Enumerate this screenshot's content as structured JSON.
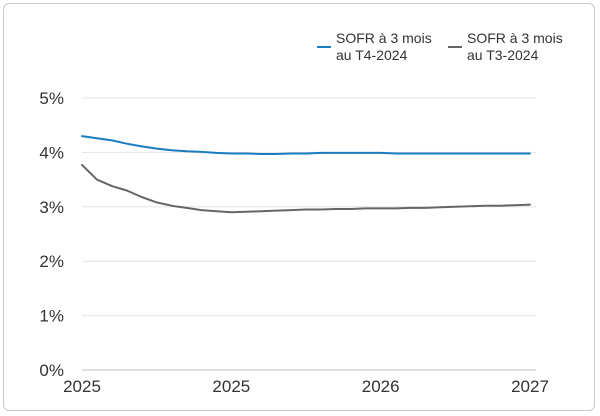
{
  "chart_data": {
    "type": "line",
    "title": "",
    "xlabel": "",
    "ylabel": "",
    "ylim": [
      0,
      5
    ],
    "y_ticks": [
      {
        "value": 0,
        "label": "0%"
      },
      {
        "value": 1,
        "label": "1%"
      },
      {
        "value": 2,
        "label": "2%"
      },
      {
        "value": 3,
        "label": "3%"
      },
      {
        "value": 4,
        "label": "4%"
      },
      {
        "value": 5,
        "label": "5%"
      }
    ],
    "xlim": [
      0,
      30
    ],
    "x_ticks": [
      {
        "value": 0,
        "label": "2025"
      },
      {
        "value": 10,
        "label": "2025"
      },
      {
        "value": 20,
        "label": "2026"
      },
      {
        "value": 30,
        "label": "2027"
      }
    ],
    "grid": true,
    "legend_position": "top-right",
    "x": [
      0,
      1,
      2,
      3,
      4,
      5,
      6,
      7,
      8,
      9,
      10,
      11,
      12,
      13,
      14,
      15,
      16,
      17,
      18,
      19,
      20,
      21,
      22,
      23,
      24,
      25,
      26,
      27,
      28,
      29,
      30
    ],
    "series": [
      {
        "name_line1": "SOFR à 3 mois",
        "name_line2": "au T4-2024",
        "color": "#1a7cc1",
        "values": [
          4.3,
          4.26,
          4.22,
          4.16,
          4.11,
          4.07,
          4.04,
          4.02,
          4.01,
          3.99,
          3.98,
          3.98,
          3.97,
          3.97,
          3.98,
          3.98,
          3.99,
          3.99,
          3.99,
          3.99,
          3.99,
          3.98,
          3.98,
          3.98,
          3.98,
          3.98,
          3.98,
          3.98,
          3.98,
          3.98,
          3.98
        ]
      },
      {
        "name_line1": "SOFR à 3 mois",
        "name_line2": "au T3-2024",
        "color": "#666666",
        "values": [
          3.77,
          3.5,
          3.38,
          3.3,
          3.18,
          3.08,
          3.02,
          2.98,
          2.94,
          2.92,
          2.9,
          2.91,
          2.92,
          2.93,
          2.94,
          2.95,
          2.95,
          2.96,
          2.96,
          2.97,
          2.97,
          2.97,
          2.98,
          2.98,
          2.99,
          3.0,
          3.01,
          3.02,
          3.02,
          3.03,
          3.04
        ]
      }
    ]
  }
}
